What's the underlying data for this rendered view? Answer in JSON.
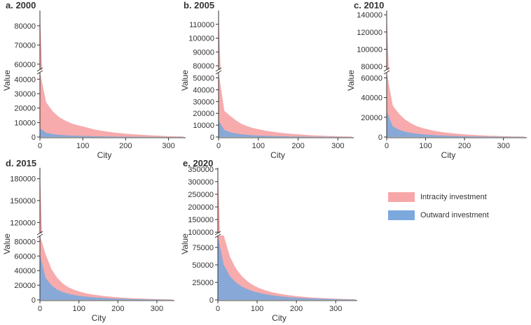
{
  "figure": {
    "legend": [
      {
        "label": "Intracity investment",
        "color": "#f7a7a8"
      },
      {
        "label": "Outward investment",
        "color": "#7ba9dd"
      }
    ]
  },
  "chart_data": [
    {
      "type": "area",
      "panel_label": "a.",
      "title": "2000",
      "xlabel": "City",
      "ylabel": "Value",
      "xlim": [
        0,
        340
      ],
      "xticks": [
        0,
        100,
        200,
        300
      ],
      "broken_y_axis": true,
      "y_upper": {
        "range": [
          57000,
          88000
        ],
        "ticks": [
          60000,
          70000,
          80000
        ]
      },
      "y_lower": {
        "range": [
          0,
          45000
        ],
        "ticks": [
          0,
          10000,
          20000,
          30000,
          40000
        ]
      },
      "series": [
        {
          "name": "Intracity investment",
          "color": "#f7a7a8",
          "values": [
            88000,
            24000,
            18000,
            14000,
            11500,
            9500,
            8200,
            7200,
            6000,
            5000,
            4200,
            3600,
            3000,
            2600,
            2200,
            1900,
            1600,
            1300,
            1100,
            900,
            700,
            550,
            450,
            350
          ]
        },
        {
          "name": "Outward investment",
          "color": "#7ba9dd",
          "values": [
            6000,
            3000,
            2000,
            1500,
            1200,
            1000,
            850,
            700,
            600,
            500,
            420,
            350,
            300,
            250,
            200,
            170,
            140,
            110,
            90,
            70,
            50,
            40,
            30,
            20
          ]
        }
      ]
    },
    {
      "type": "area",
      "panel_label": "b.",
      "title": "2005",
      "xlabel": "City",
      "ylabel": "Value",
      "xlim": [
        0,
        340
      ],
      "xticks": [
        0,
        100,
        200,
        300
      ],
      "broken_y_axis": true,
      "y_upper": {
        "range": [
          77000,
          120000
        ],
        "ticks": [
          80000,
          90000,
          100000,
          110000
        ]
      },
      "y_lower": {
        "range": [
          0,
          55000
        ],
        "ticks": [
          0,
          10000,
          20000,
          30000,
          40000,
          50000
        ]
      },
      "series": [
        {
          "name": "Intracity investment",
          "color": "#f7a7a8",
          "values": [
            120000,
            22000,
            18000,
            14000,
            11000,
            9000,
            7500,
            6500,
            5500,
            4700,
            4000,
            3400,
            2900,
            2500,
            2100,
            1800,
            1500,
            1250,
            1050,
            850,
            700,
            550,
            450,
            350
          ]
        },
        {
          "name": "Outward investment",
          "color": "#7ba9dd",
          "values": [
            14000,
            6000,
            4000,
            3000,
            2300,
            1800,
            1500,
            1200,
            1000,
            850,
            700,
            600,
            500,
            420,
            350,
            290,
            240,
            200,
            160,
            130,
            100,
            80,
            60,
            40
          ]
        }
      ]
    },
    {
      "type": "area",
      "panel_label": "c.",
      "title": "2010",
      "xlabel": "City",
      "ylabel": "Value",
      "xlim": [
        0,
        360
      ],
      "xticks": [
        0,
        100,
        200,
        300
      ],
      "broken_y_axis": true,
      "y_upper": {
        "range": [
          76000,
          145000
        ],
        "ticks": [
          80000,
          100000,
          120000,
          140000
        ]
      },
      "y_lower": {
        "range": [
          0,
          66000
        ],
        "ticks": [
          0,
          20000,
          40000,
          60000
        ]
      },
      "series": [
        {
          "name": "Intracity investment",
          "color": "#f7a7a8",
          "values": [
            145000,
            32000,
            24000,
            18000,
            14000,
            11000,
            9000,
            7500,
            6200,
            5200,
            4400,
            3700,
            3100,
            2600,
            2200,
            1850,
            1550,
            1300,
            1100,
            900,
            750,
            600,
            480,
            380
          ]
        },
        {
          "name": "Outward investment",
          "color": "#7ba9dd",
          "values": [
            26000,
            11000,
            7500,
            5500,
            4200,
            3300,
            2700,
            2200,
            1800,
            1500,
            1250,
            1050,
            880,
            740,
            620,
            520,
            430,
            360,
            300,
            250,
            200,
            160,
            120,
            90
          ]
        }
      ]
    },
    {
      "type": "area",
      "panel_label": "d.",
      "title": "2015",
      "xlabel": "City",
      "ylabel": "Value",
      "xlim": [
        0,
        345
      ],
      "xticks": [
        0,
        100,
        200,
        300
      ],
      "broken_y_axis": true,
      "y_upper": {
        "range": [
          105000,
          195000
        ],
        "ticks": [
          120000,
          150000,
          180000
        ]
      },
      "y_lower": {
        "range": [
          0,
          88000
        ],
        "ticks": [
          0,
          20000,
          40000,
          60000,
          80000
        ]
      },
      "series": [
        {
          "name": "Intracity investment",
          "color": "#f7a7a8",
          "values": [
            195000,
            62000,
            42000,
            30000,
            22000,
            17000,
            13500,
            11000,
            9000,
            7500,
            6300,
            5300,
            4500,
            3800,
            3200,
            2700,
            2250,
            1900,
            1600,
            1300,
            1050,
            850,
            680,
            540
          ]
        },
        {
          "name": "Outward investment",
          "color": "#7ba9dd",
          "values": [
            62000,
            30000,
            20000,
            14000,
            10500,
            8200,
            6500,
            5300,
            4400,
            3700,
            3100,
            2600,
            2200,
            1850,
            1550,
            1300,
            1100,
            920,
            770,
            640,
            520,
            420,
            330,
            250
          ]
        }
      ]
    },
    {
      "type": "area",
      "panel_label": "e.",
      "title": "2020",
      "xlabel": "City",
      "ylabel": "Value",
      "xlim": [
        0,
        355
      ],
      "xticks": [
        0,
        100,
        200,
        300
      ],
      "broken_y_axis": true,
      "y_upper": {
        "range": [
          95000,
          355000
        ],
        "ticks": [
          100000,
          150000,
          200000,
          250000,
          300000,
          350000
        ]
      },
      "y_lower": {
        "range": [
          0,
          92000
        ],
        "ticks": [
          0,
          25000,
          50000,
          75000
        ]
      },
      "series": [
        {
          "name": "Intracity investment",
          "color": "#f7a7a8",
          "values": [
            355000,
            92000,
            62000,
            45000,
            34000,
            26000,
            20500,
            16500,
            13500,
            11000,
            9200,
            7700,
            6500,
            5500,
            4600,
            3900,
            3300,
            2800,
            2350,
            1950,
            1600,
            1300,
            1050,
            850
          ]
        },
        {
          "name": "Outward investment",
          "color": "#7ba9dd",
          "values": [
            90000,
            50000,
            34000,
            25000,
            19000,
            15000,
            12000,
            9800,
            8000,
            6600,
            5500,
            4600,
            3800,
            3200,
            2700,
            2250,
            1900,
            1600,
            1350,
            1120,
            930,
            760,
            610,
            480
          ]
        }
      ]
    }
  ]
}
